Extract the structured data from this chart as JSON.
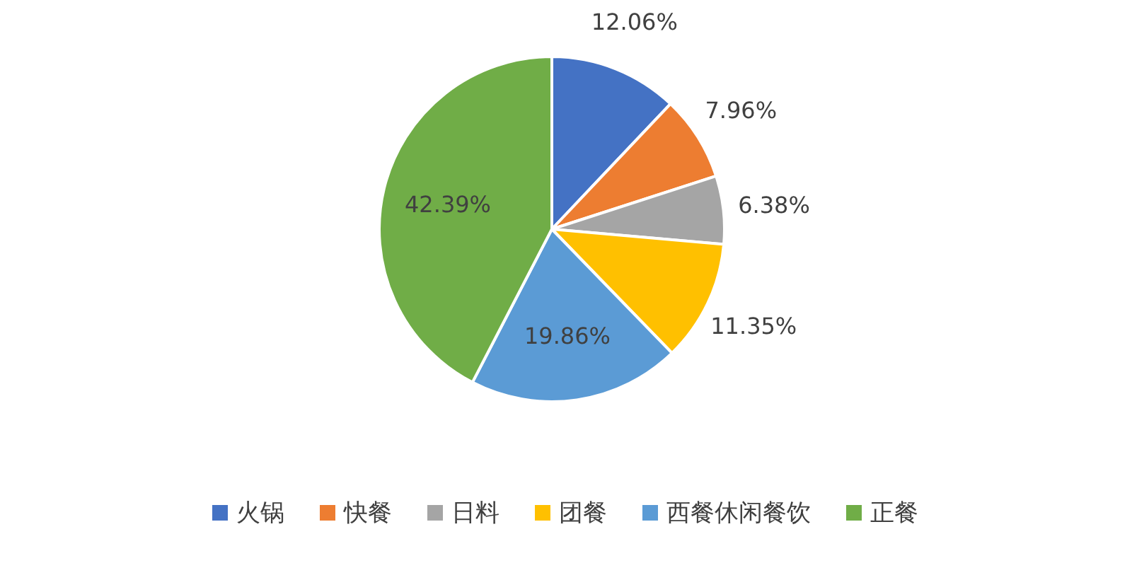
{
  "chart_data": {
    "type": "pie",
    "categories": [
      "火锅",
      "快餐",
      "日料",
      "团餐",
      "西餐休闲餐饮",
      "正餐"
    ],
    "values": [
      12.06,
      7.96,
      6.38,
      11.35,
      19.86,
      42.39
    ],
    "colors": [
      "#4472c4",
      "#ed7d31",
      "#a5a5a5",
      "#ffc000",
      "#5b9bd5",
      "#70ad47"
    ],
    "value_labels": [
      "12.06%",
      "7.96%",
      "6.38%",
      "11.35%",
      "19.86%",
      "42.39%"
    ],
    "legend": "bottom"
  }
}
